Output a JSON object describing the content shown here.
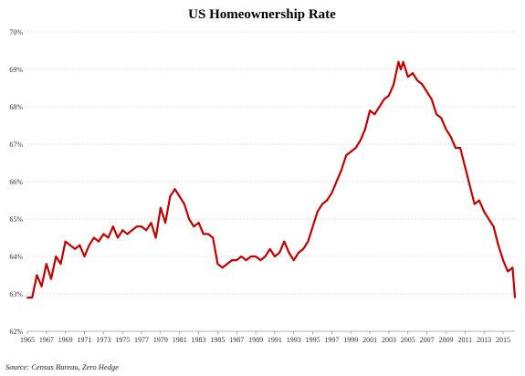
{
  "chart_data": {
    "type": "line",
    "title": "US Homeownership Rate",
    "source": "Source: Census Bureau, Zero Hedge",
    "xlabel": "",
    "ylabel": "",
    "xlim": [
      1965,
      2016.25
    ],
    "ylim": [
      62,
      70
    ],
    "grid": true,
    "legend": "none",
    "color": "#c00000",
    "x_ticks": [
      1965,
      1967,
      1969,
      1971,
      1973,
      1975,
      1977,
      1979,
      1981,
      1983,
      1985,
      1987,
      1989,
      1991,
      1993,
      1995,
      1997,
      1999,
      2001,
      2003,
      2005,
      2007,
      2009,
      2011,
      2013,
      2015
    ],
    "y_ticks": [
      {
        "value": 62,
        "label": "62%"
      },
      {
        "value": 63,
        "label": "63%"
      },
      {
        "value": 64,
        "label": "64%"
      },
      {
        "value": 65,
        "label": "65%"
      },
      {
        "value": 66,
        "label": "66%"
      },
      {
        "value": 67,
        "label": "67%"
      },
      {
        "value": 68,
        "label": "68%"
      },
      {
        "value": 69,
        "label": "69%"
      },
      {
        "value": 70,
        "label": "70%"
      }
    ],
    "series": [
      {
        "x": [
          1965.0,
          1965.5,
          1966.0,
          1966.5,
          1967.0,
          1967.5,
          1968.0,
          1968.5,
          1969.0,
          1969.5,
          1970.0,
          1970.5,
          1971.0,
          1971.5,
          1972.0,
          1972.5,
          1973.0,
          1973.5,
          1974.0,
          1974.5,
          1975.0,
          1975.5,
          1976.0,
          1976.5,
          1977.0,
          1977.5,
          1978.0,
          1978.5,
          1979.0,
          1979.5,
          1980.0,
          1980.5,
          1981.0,
          1981.5,
          1982.0,
          1982.5,
          1983.0,
          1983.5,
          1984.0,
          1984.5,
          1985.0,
          1985.5,
          1986.0,
          1986.5,
          1987.0,
          1987.5,
          1988.0,
          1988.5,
          1989.0,
          1989.5,
          1990.0,
          1990.5,
          1991.0,
          1991.5,
          1992.0,
          1992.5,
          1993.0,
          1993.5,
          1994.0,
          1994.5,
          1995.0,
          1995.5,
          1996.0,
          1996.5,
          1997.0,
          1997.5,
          1998.0,
          1998.5,
          1999.0,
          1999.5,
          2000.0,
          2000.5,
          2001.0,
          2001.5,
          2002.0,
          2002.5,
          2003.0,
          2003.5,
          2004.0,
          2004.25,
          2004.5,
          2004.75,
          2005.0,
          2005.5,
          2006.0,
          2006.5,
          2007.0,
          2007.5,
          2008.0,
          2008.5,
          2009.0,
          2009.5,
          2010.0,
          2010.5,
          2011.0,
          2011.5,
          2012.0,
          2012.5,
          2013.0,
          2013.5,
          2014.0,
          2014.5,
          2015.0,
          2015.5,
          2016.0,
          2016.25
        ],
        "values": [
          62.9,
          62.9,
          63.5,
          63.2,
          63.8,
          63.4,
          64.0,
          63.8,
          64.4,
          64.3,
          64.2,
          64.3,
          64.0,
          64.3,
          64.5,
          64.4,
          64.6,
          64.5,
          64.8,
          64.5,
          64.7,
          64.6,
          64.7,
          64.8,
          64.8,
          64.7,
          64.9,
          64.5,
          65.3,
          64.9,
          65.6,
          65.8,
          65.6,
          65.4,
          65.0,
          64.8,
          64.9,
          64.6,
          64.6,
          64.5,
          63.8,
          63.7,
          63.8,
          63.9,
          63.9,
          64.0,
          63.9,
          64.0,
          64.0,
          63.9,
          64.0,
          64.2,
          64.0,
          64.1,
          64.4,
          64.1,
          63.9,
          64.1,
          64.2,
          64.4,
          64.8,
          65.2,
          65.4,
          65.5,
          65.7,
          66.0,
          66.3,
          66.7,
          66.8,
          66.9,
          67.1,
          67.4,
          67.9,
          67.8,
          68.0,
          68.2,
          68.3,
          68.6,
          69.2,
          69.0,
          69.2,
          69.0,
          68.8,
          68.9,
          68.7,
          68.6,
          68.4,
          68.2,
          67.8,
          67.7,
          67.4,
          67.2,
          66.9,
          66.9,
          66.4,
          65.9,
          65.4,
          65.5,
          65.2,
          65.0,
          64.8,
          64.3,
          63.9,
          63.6,
          63.7,
          62.9
        ]
      }
    ]
  }
}
